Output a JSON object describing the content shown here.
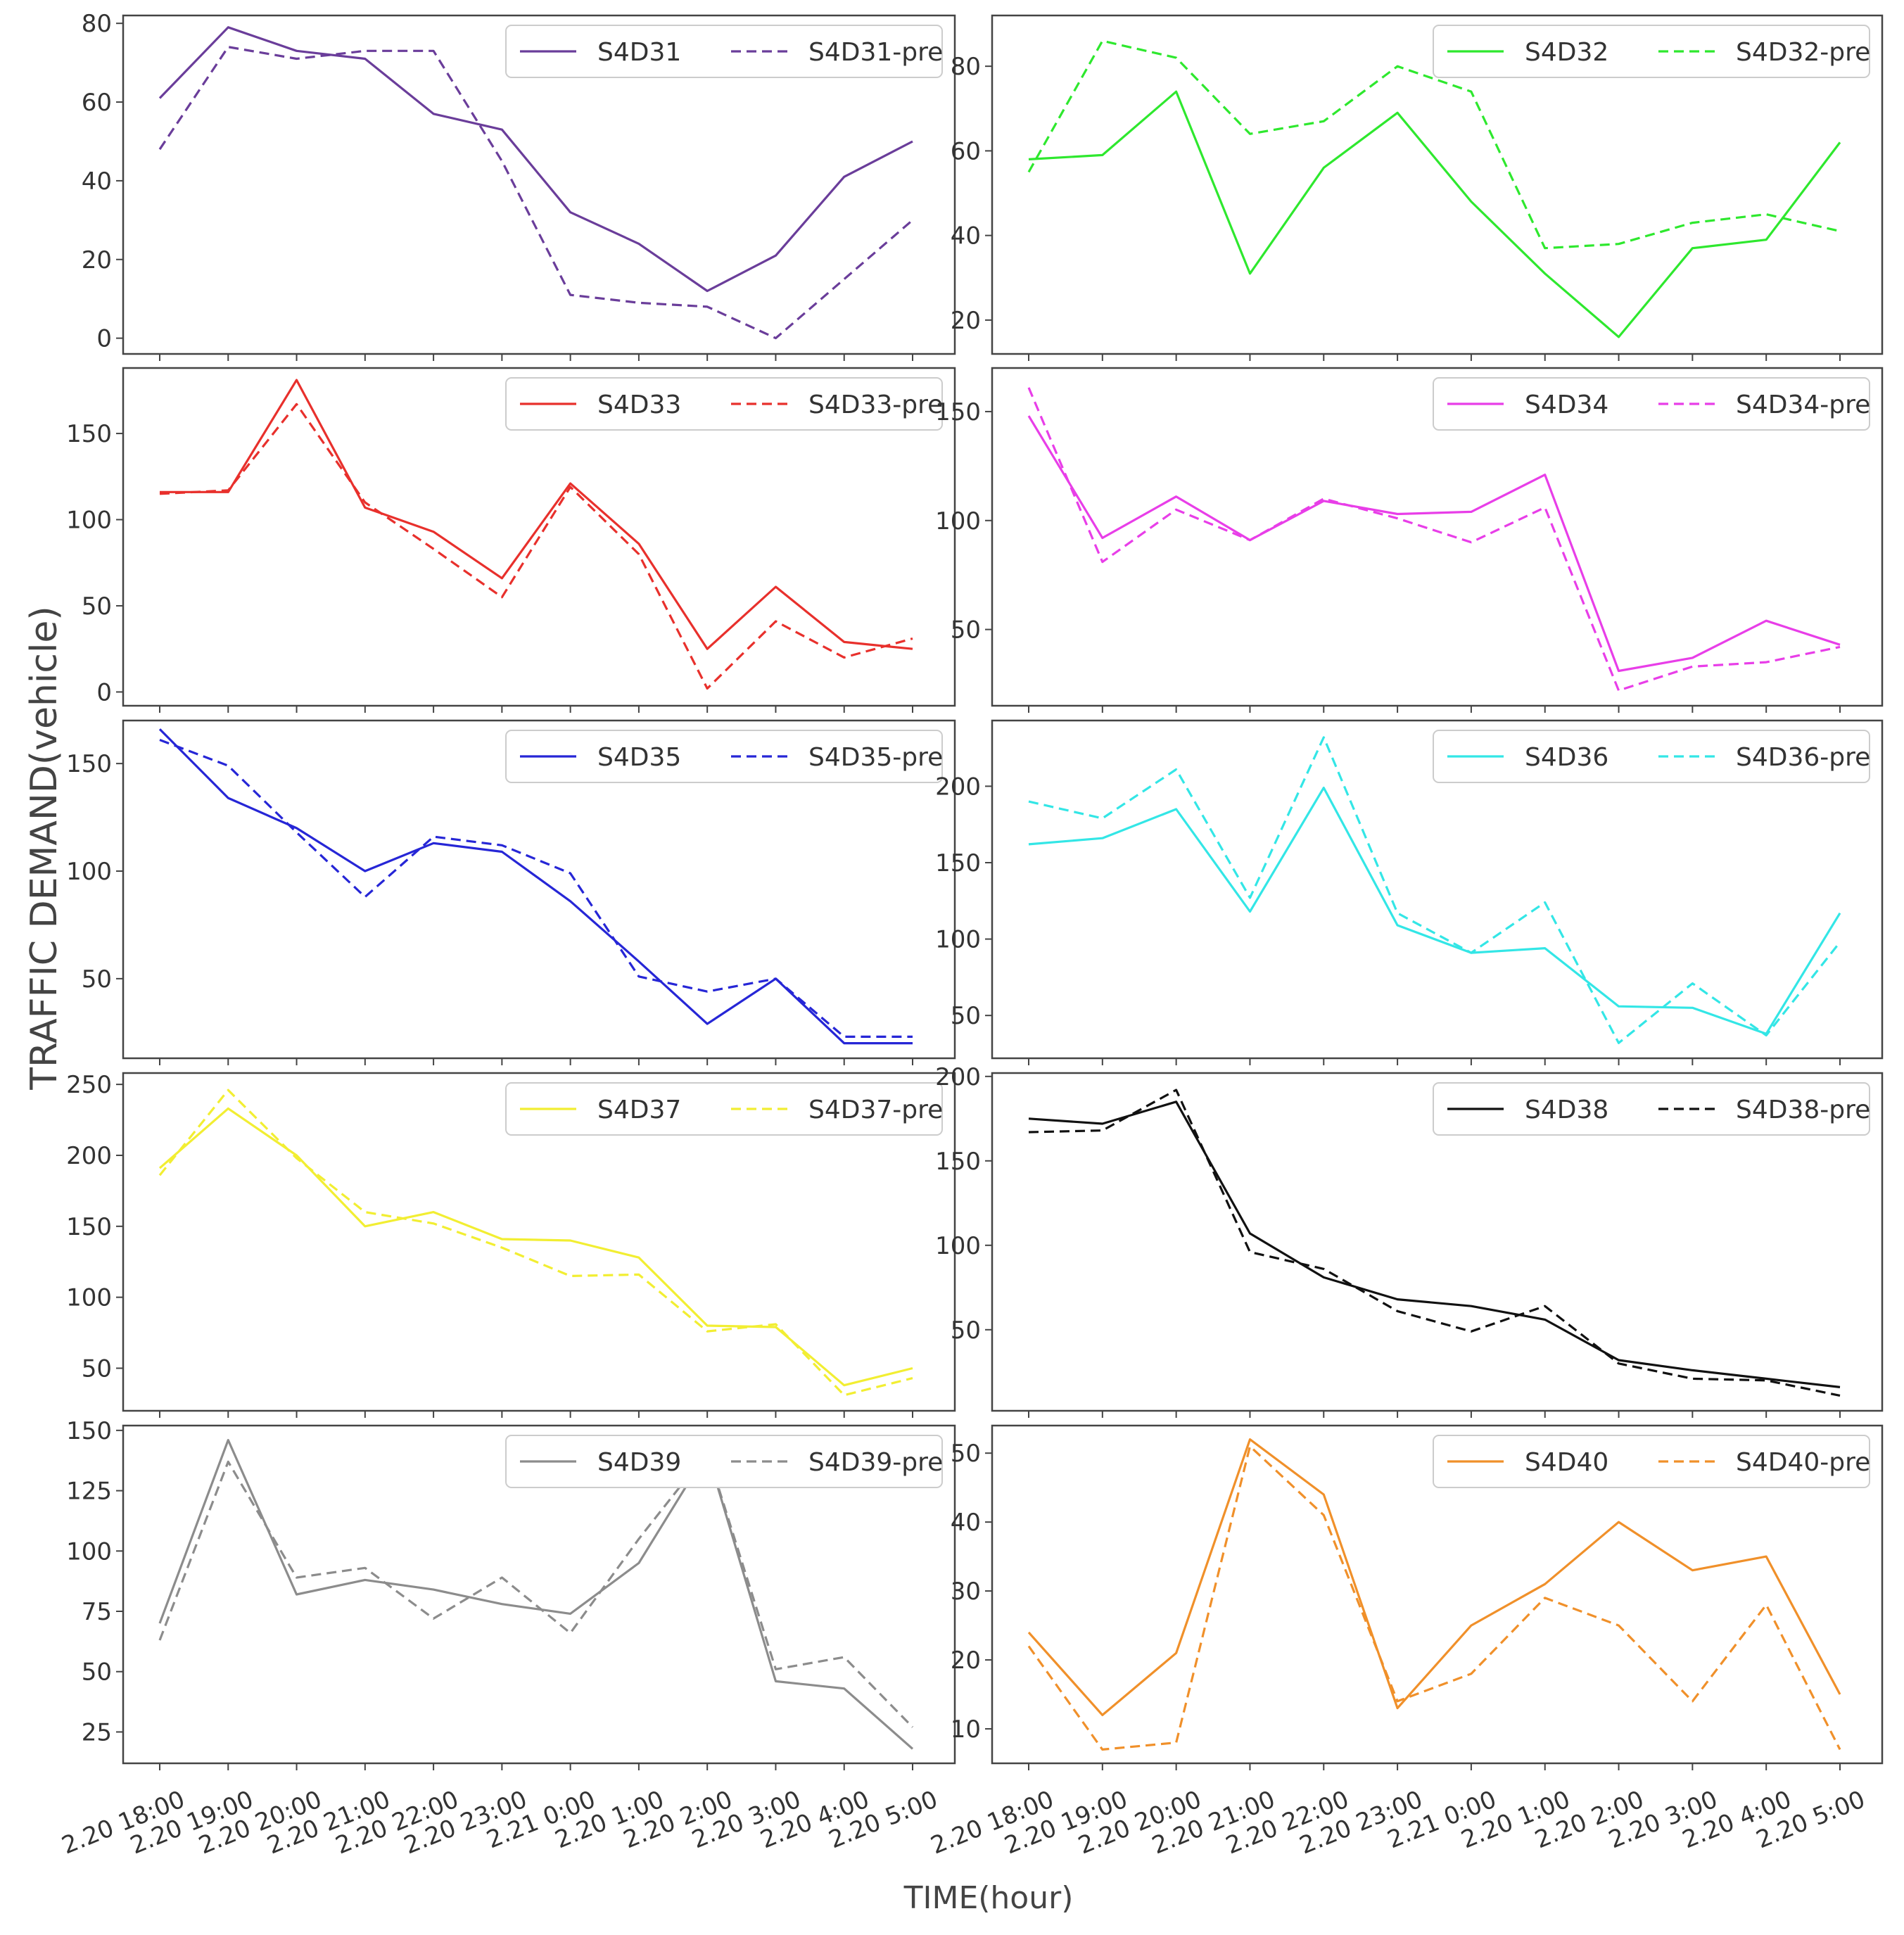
{
  "figure": {
    "ylabel": "TRAFFIC DEMAND(vehicle)",
    "xlabel": "TIME(hour)"
  },
  "chart_data": [
    {
      "type": "line",
      "title": "",
      "categories": [
        "2.20 18:00",
        "2.20 19:00",
        "2.20 20:00",
        "2.20 21:00",
        "2.20 22:00",
        "2.20 23:00",
        "2.21 0:00",
        "2.20 1:00",
        "2.20 2:00",
        "2.20 3:00",
        "2.20 4:00",
        "2.20 5:00"
      ],
      "color": "#6a3d9a",
      "ylim": [
        -4,
        82
      ],
      "yticks": [
        0,
        20,
        40,
        60,
        80
      ],
      "legend_position": "top-right",
      "series": [
        {
          "name": "S4D31",
          "style": "solid",
          "values": [
            61,
            79,
            73,
            71,
            57,
            53,
            32,
            24,
            12,
            21,
            41,
            50
          ]
        },
        {
          "name": "S4D31-pre",
          "style": "dashed",
          "values": [
            48,
            74,
            71,
            73,
            73,
            45,
            11,
            9,
            8,
            0,
            15,
            30
          ]
        }
      ]
    },
    {
      "type": "line",
      "title": "",
      "categories": [
        "2.20 18:00",
        "2.20 19:00",
        "2.20 20:00",
        "2.20 21:00",
        "2.20 22:00",
        "2.20 23:00",
        "2.21 0:00",
        "2.20 1:00",
        "2.20 2:00",
        "2.20 3:00",
        "2.20 4:00",
        "2.20 5:00"
      ],
      "color": "#2ee82e",
      "ylim": [
        12,
        92
      ],
      "yticks": [
        20,
        40,
        60,
        80
      ],
      "legend_position": "top-right",
      "series": [
        {
          "name": "S4D32",
          "style": "solid",
          "values": [
            58,
            59,
            74,
            31,
            56,
            69,
            48,
            31,
            16,
            37,
            39,
            62
          ]
        },
        {
          "name": "S4D32-pre",
          "style": "dashed",
          "values": [
            55,
            86,
            82,
            64,
            67,
            80,
            74,
            37,
            38,
            43,
            45,
            41
          ]
        }
      ]
    },
    {
      "type": "line",
      "title": "",
      "categories": [
        "2.20 18:00",
        "2.20 19:00",
        "2.20 20:00",
        "2.20 21:00",
        "2.20 22:00",
        "2.20 23:00",
        "2.21 0:00",
        "2.20 1:00",
        "2.20 2:00",
        "2.20 3:00",
        "2.20 4:00",
        "2.20 5:00"
      ],
      "color": "#e8302c",
      "ylim": [
        -8,
        188
      ],
      "yticks": [
        0,
        50,
        100,
        150
      ],
      "legend_position": "top-right",
      "series": [
        {
          "name": "S4D33",
          "style": "solid",
          "values": [
            116,
            116,
            181,
            107,
            93,
            66,
            121,
            86,
            25,
            61,
            29,
            25
          ]
        },
        {
          "name": "S4D33-pre",
          "style": "dashed",
          "values": [
            115,
            117,
            167,
            110,
            83,
            55,
            119,
            80,
            2,
            41,
            20,
            31
          ]
        }
      ]
    },
    {
      "type": "line",
      "title": "",
      "categories": [
        "2.20 18:00",
        "2.20 19:00",
        "2.20 20:00",
        "2.20 21:00",
        "2.20 22:00",
        "2.20 23:00",
        "2.21 0:00",
        "2.20 1:00",
        "2.20 2:00",
        "2.20 3:00",
        "2.20 4:00",
        "2.20 5:00"
      ],
      "color": "#e83ee8",
      "ylim": [
        15,
        170
      ],
      "yticks": [
        50,
        100,
        150
      ],
      "legend_position": "top-right",
      "series": [
        {
          "name": "S4D34",
          "style": "solid",
          "values": [
            148,
            92,
            111,
            91,
            109,
            103,
            104,
            121,
            31,
            37,
            54,
            43
          ]
        },
        {
          "name": "S4D34-pre",
          "style": "dashed",
          "values": [
            161,
            81,
            105,
            91,
            110,
            101,
            90,
            106,
            22,
            33,
            35,
            42
          ]
        }
      ]
    },
    {
      "type": "line",
      "title": "",
      "categories": [
        "2.20 18:00",
        "2.20 19:00",
        "2.20 20:00",
        "2.20 21:00",
        "2.20 22:00",
        "2.20 23:00",
        "2.21 0:00",
        "2.20 1:00",
        "2.20 2:00",
        "2.20 3:00",
        "2.20 4:00",
        "2.20 5:00"
      ],
      "color": "#2626d6",
      "ylim": [
        13,
        170
      ],
      "yticks": [
        50,
        100,
        150
      ],
      "legend_position": "top-right",
      "series": [
        {
          "name": "S4D35",
          "style": "solid",
          "values": [
            166,
            134,
            120,
            100,
            113,
            109,
            86,
            58,
            29,
            50,
            20,
            20
          ]
        },
        {
          "name": "S4D35-pre",
          "style": "dashed",
          "values": [
            161,
            149,
            118,
            88,
            116,
            112,
            99,
            51,
            44,
            50,
            23,
            23
          ]
        }
      ]
    },
    {
      "type": "line",
      "title": "",
      "categories": [
        "2.20 18:00",
        "2.20 19:00",
        "2.20 20:00",
        "2.20 21:00",
        "2.20 22:00",
        "2.20 23:00",
        "2.21 0:00",
        "2.20 1:00",
        "2.20 2:00",
        "2.20 3:00",
        "2.20 4:00",
        "2.20 5:00"
      ],
      "color": "#33e6e6",
      "ylim": [
        22,
        243
      ],
      "yticks": [
        50,
        100,
        150,
        200
      ],
      "legend_position": "top-right",
      "series": [
        {
          "name": "S4D36",
          "style": "solid",
          "values": [
            162,
            166,
            185,
            118,
            199,
            109,
            91,
            94,
            56,
            55,
            38,
            117
          ]
        },
        {
          "name": "S4D36-pre",
          "style": "dashed",
          "values": [
            190,
            179,
            211,
            127,
            232,
            117,
            91,
            124,
            32,
            71,
            37,
            98
          ]
        }
      ]
    },
    {
      "type": "line",
      "title": "",
      "categories": [
        "2.20 18:00",
        "2.20 19:00",
        "2.20 20:00",
        "2.20 21:00",
        "2.20 22:00",
        "2.20 23:00",
        "2.21 0:00",
        "2.20 1:00",
        "2.20 2:00",
        "2.20 3:00",
        "2.20 4:00",
        "2.20 5:00"
      ],
      "color": "#f2ee32",
      "ylim": [
        20,
        258
      ],
      "yticks": [
        50,
        100,
        150,
        200,
        250
      ],
      "legend_position": "top-right",
      "series": [
        {
          "name": "S4D37",
          "style": "solid",
          "values": [
            191,
            233,
            200,
            150,
            160,
            141,
            140,
            128,
            80,
            79,
            38,
            50
          ]
        },
        {
          "name": "S4D37-pre",
          "style": "dashed",
          "values": [
            186,
            246,
            198,
            160,
            152,
            135,
            115,
            116,
            76,
            81,
            31,
            43
          ]
        }
      ]
    },
    {
      "type": "line",
      "title": "",
      "categories": [
        "2.20 18:00",
        "2.20 19:00",
        "2.20 20:00",
        "2.20 21:00",
        "2.20 22:00",
        "2.20 23:00",
        "2.21 0:00",
        "2.20 1:00",
        "2.20 2:00",
        "2.20 3:00",
        "2.20 4:00",
        "2.20 5:00"
      ],
      "color": "#111111",
      "ylim": [
        2,
        202
      ],
      "yticks": [
        50,
        100,
        150,
        200
      ],
      "legend_position": "top-right",
      "series": [
        {
          "name": "S4D38",
          "style": "solid",
          "values": [
            175,
            172,
            185,
            107,
            81,
            68,
            64,
            56,
            32,
            26,
            21,
            16
          ]
        },
        {
          "name": "S4D38-pre",
          "style": "dashed",
          "values": [
            167,
            168,
            192,
            96,
            86,
            61,
            49,
            64,
            30,
            21,
            20,
            11
          ]
        }
      ]
    },
    {
      "type": "line",
      "title": "",
      "categories": [
        "2.20 18:00",
        "2.20 19:00",
        "2.20 20:00",
        "2.20 21:00",
        "2.20 22:00",
        "2.20 23:00",
        "2.21 0:00",
        "2.20 1:00",
        "2.20 2:00",
        "2.20 3:00",
        "2.20 4:00",
        "2.20 5:00"
      ],
      "color": "#8c8c8c",
      "ylim": [
        12,
        152
      ],
      "yticks": [
        25,
        50,
        75,
        100,
        125,
        150
      ],
      "legend_position": "top-right",
      "series": [
        {
          "name": "S4D39",
          "style": "solid",
          "values": [
            70,
            146,
            82,
            88,
            84,
            78,
            74,
            95,
            141,
            46,
            43,
            18
          ]
        },
        {
          "name": "S4D39-pre",
          "style": "dashed",
          "values": [
            63,
            137,
            89,
            93,
            72,
            89,
            66,
            105,
            141,
            51,
            56,
            27
          ]
        }
      ]
    },
    {
      "type": "line",
      "title": "",
      "categories": [
        "2.20 18:00",
        "2.20 19:00",
        "2.20 20:00",
        "2.20 21:00",
        "2.20 22:00",
        "2.20 23:00",
        "2.21 0:00",
        "2.20 1:00",
        "2.20 2:00",
        "2.20 3:00",
        "2.20 4:00",
        "2.20 5:00"
      ],
      "color": "#f0902a",
      "ylim": [
        5,
        54
      ],
      "yticks": [
        10,
        20,
        30,
        40,
        50
      ],
      "legend_position": "top-right",
      "series": [
        {
          "name": "S4D40",
          "style": "solid",
          "values": [
            24,
            12,
            21,
            52,
            44,
            13,
            25,
            31,
            40,
            33,
            35,
            15
          ]
        },
        {
          "name": "S4D40-pre",
          "style": "dashed",
          "values": [
            22,
            7,
            8,
            51,
            41,
            14,
            18,
            29,
            25,
            14,
            28,
            7
          ]
        }
      ]
    }
  ]
}
